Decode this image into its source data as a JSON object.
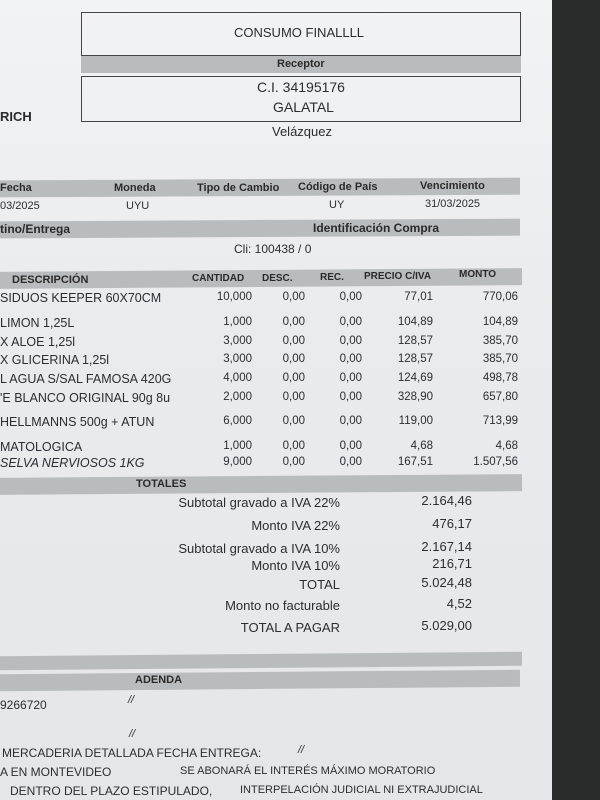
{
  "header": {
    "title": "CONSUMO FINALLLL",
    "receptor_label": "Receptor",
    "ci": "C.I. 34195176",
    "name": "GALATAL",
    "left_fragment": "RICH",
    "street": "Velázquez"
  },
  "info": {
    "headers": [
      "Fecha",
      "Moneda",
      "Tipo de Cambio",
      "Código de País",
      "Vencimiento"
    ],
    "values": [
      "03/2025",
      "UYU",
      "",
      "UY",
      "31/03/2025"
    ]
  },
  "destino": {
    "label": "tino/Entrega",
    "compra_label": "Identificación Compra",
    "client": "Cli: 100438 / 0"
  },
  "table": {
    "headers": [
      "DESCRIPCIÓN",
      "CANTIDAD",
      "DESC.",
      "REC.",
      "PRECIO C/IVA",
      "MONTO"
    ],
    "rows": [
      [
        "SIDUOS KEEPER 60X70CM",
        "10,000",
        "0,00",
        "0,00",
        "77,01",
        "770,06"
      ],
      [
        "LIMON 1,25L",
        "1,000",
        "0,00",
        "0,00",
        "104,89",
        "104,89"
      ],
      [
        "X ALOE 1,25l",
        "3,000",
        "0,00",
        "0,00",
        "128,57",
        "385,70"
      ],
      [
        "X GLICERINA 1,25l",
        "3,000",
        "0,00",
        "0,00",
        "128,57",
        "385,70"
      ],
      [
        "L AGUA S/SAL FAMOSA 420G",
        "4,000",
        "0,00",
        "0,00",
        "124,69",
        "498,78"
      ],
      [
        "'E BLANCO ORIGINAL 90g 8u",
        "2,000",
        "0,00",
        "0,00",
        "328,90",
        "657,80"
      ],
      [
        "HELLMANNS 500g + ATUN",
        "6,000",
        "0,00",
        "0,00",
        "119,00",
        "713,99"
      ],
      [
        "MATOLOGICA",
        "1,000",
        "0,00",
        "0,00",
        "4,68",
        "4,68"
      ],
      [
        "SELVA NERVIOSOS 1KG",
        "9,000",
        "0,00",
        "0,00",
        "167,51",
        "1.507,56"
      ]
    ]
  },
  "totals": {
    "label": "TOTALES",
    "lines": [
      {
        "label": "Subtotal gravado a IVA 22%",
        "value": "2.164,46"
      },
      {
        "label": "Monto IVA 22%",
        "value": "476,17"
      },
      {
        "label": "Subtotal gravado a IVA 10%",
        "value": "2.167,14"
      },
      {
        "label": "Monto IVA 10%",
        "value": "216,71"
      },
      {
        "label": "TOTAL",
        "value": "5.024,48"
      },
      {
        "label": "Monto no facturable",
        "value": "4,52"
      },
      {
        "label": "TOTAL A PAGAR",
        "value": "5.029,00"
      }
    ]
  },
  "adenda": {
    "label": "ADENDA",
    "phone": "9266720",
    "slash1": "//",
    "slash2": "//",
    "slash3": "//",
    "line1": "MERCADERIA DETALLADA FECHA ENTREGA:",
    "line2": "A EN MONTEVIDEO",
    "line3": "SE ABONARÁ EL INTERÉS MÁXIMO MORATORIO",
    "line4": "DENTRO DEL PLAZO ESTIPULADO,",
    "line5": "INTERPELACIÓN JUDICIAL NI EXTRAJUDICIAL"
  }
}
